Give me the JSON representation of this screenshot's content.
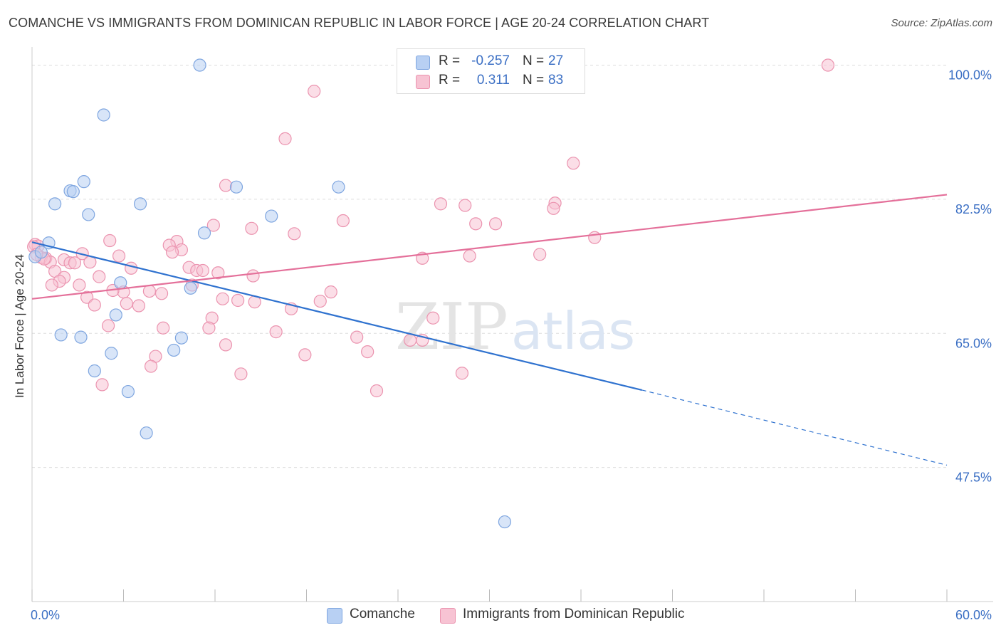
{
  "title": "COMANCHE VS IMMIGRANTS FROM DOMINICAN REPUBLIC IN LABOR FORCE | AGE 20-24 CORRELATION CHART",
  "source": "Source: ZipAtlas.com",
  "watermark": {
    "zip": "ZIP",
    "atlas": "atlas"
  },
  "legend": {
    "comanche": {
      "r_label": "R =",
      "r_value": "-0.257",
      "n_label": "N =",
      "n_value": "27"
    },
    "dominican": {
      "r_label": "R =",
      "r_value": "0.311",
      "n_label": "N =",
      "n_value": "83"
    }
  },
  "colors": {
    "comanche_fill": "#b8d0f3",
    "comanche_stroke": "#7fa6e0",
    "comanche_line": "#2f72cf",
    "dominican_fill": "#f7c3d3",
    "dominican_stroke": "#eb93af",
    "dominican_line": "#e4709a",
    "tick_label": "#3b6fc4",
    "grid": "#dddddd"
  },
  "chart_data": {
    "type": "scatter",
    "title": "COMANCHE VS IMMIGRANTS FROM DOMINICAN REPUBLIC IN LABOR FORCE | AGE 20-24 CORRELATION CHART",
    "xlabel": "",
    "ylabel": "In Labor Force | Age 20-24",
    "xlim": [
      0,
      60
    ],
    "ylim": [
      30,
      102
    ],
    "x_tick_labels": [
      "0.0%",
      "60.0%"
    ],
    "y_ticks": [
      47.5,
      65.0,
      82.5,
      100.0
    ],
    "y_tick_labels": [
      "47.5%",
      "65.0%",
      "82.5%",
      "100.0%"
    ],
    "grid": true,
    "legend_position": "top-center",
    "series": [
      {
        "name": "Comanche",
        "points": [
          [
            11.0,
            100.0
          ],
          [
            4.7,
            93.5
          ],
          [
            3.4,
            84.8
          ],
          [
            2.5,
            83.6
          ],
          [
            2.7,
            83.5
          ],
          [
            13.4,
            84.1
          ],
          [
            20.1,
            84.1
          ],
          [
            1.5,
            81.9
          ],
          [
            7.1,
            81.9
          ],
          [
            3.7,
            80.5
          ],
          [
            15.7,
            80.3
          ],
          [
            11.3,
            78.1
          ],
          [
            1.1,
            76.8
          ],
          [
            0.2,
            75.0
          ],
          [
            0.6,
            75.6
          ],
          [
            5.8,
            71.6
          ],
          [
            10.4,
            70.9
          ],
          [
            5.5,
            67.4
          ],
          [
            1.9,
            64.8
          ],
          [
            3.2,
            64.5
          ],
          [
            9.8,
            64.4
          ],
          [
            5.2,
            62.4
          ],
          [
            9.3,
            62.8
          ],
          [
            4.1,
            60.1
          ],
          [
            6.3,
            57.4
          ],
          [
            7.5,
            52.0
          ],
          [
            31.0,
            40.4
          ]
        ],
        "trend": {
          "x": [
            0,
            40
          ],
          "y": [
            76.9,
            57.6
          ],
          "dashed_extension": {
            "x": [
              40,
              60
            ],
            "y": [
              57.6,
              47.8
            ]
          }
        }
      },
      {
        "name": "Immigrants from Dominican Republic",
        "points": [
          [
            52.2,
            100.0
          ],
          [
            18.5,
            96.6
          ],
          [
            16.6,
            90.4
          ],
          [
            35.5,
            87.2
          ],
          [
            12.7,
            84.3
          ],
          [
            26.8,
            81.9
          ],
          [
            28.4,
            81.7
          ],
          [
            34.3,
            82.0
          ],
          [
            34.2,
            81.3
          ],
          [
            20.4,
            79.7
          ],
          [
            29.1,
            79.3
          ],
          [
            30.4,
            79.3
          ],
          [
            11.9,
            79.1
          ],
          [
            14.4,
            78.7
          ],
          [
            17.2,
            78.0
          ],
          [
            36.9,
            77.5
          ],
          [
            5.1,
            77.1
          ],
          [
            9.5,
            77.0
          ],
          [
            0.2,
            76.6
          ],
          [
            0.4,
            76.4
          ],
          [
            9.0,
            76.5
          ],
          [
            9.8,
            75.9
          ],
          [
            9.2,
            75.6
          ],
          [
            3.3,
            75.4
          ],
          [
            33.3,
            75.3
          ],
          [
            28.7,
            75.1
          ],
          [
            25.6,
            74.8
          ],
          [
            5.7,
            75.1
          ],
          [
            2.1,
            74.6
          ],
          [
            0.9,
            74.8
          ],
          [
            0.6,
            74.9
          ],
          [
            1.2,
            74.3
          ],
          [
            2.5,
            74.2
          ],
          [
            2.8,
            74.2
          ],
          [
            3.8,
            74.3
          ],
          [
            6.5,
            73.5
          ],
          [
            10.3,
            73.6
          ],
          [
            10.8,
            73.2
          ],
          [
            11.2,
            73.2
          ],
          [
            12.2,
            72.9
          ],
          [
            1.5,
            73.1
          ],
          [
            4.4,
            72.4
          ],
          [
            2.1,
            72.3
          ],
          [
            1.8,
            71.8
          ],
          [
            14.5,
            72.5
          ],
          [
            10.5,
            71.3
          ],
          [
            3.1,
            71.3
          ],
          [
            1.3,
            71.3
          ],
          [
            6.0,
            70.4
          ],
          [
            5.3,
            70.6
          ],
          [
            7.7,
            70.5
          ],
          [
            8.5,
            70.2
          ],
          [
            19.6,
            70.4
          ],
          [
            3.6,
            69.7
          ],
          [
            12.5,
            69.5
          ],
          [
            13.5,
            69.3
          ],
          [
            18.9,
            69.2
          ],
          [
            14.6,
            69.1
          ],
          [
            6.2,
            68.9
          ],
          [
            4.1,
            68.7
          ],
          [
            7.0,
            68.6
          ],
          [
            17.0,
            68.2
          ],
          [
            11.8,
            67.0
          ],
          [
            26.3,
            67.0
          ],
          [
            5.0,
            66.0
          ],
          [
            8.6,
            65.7
          ],
          [
            11.6,
            65.7
          ],
          [
            16.0,
            65.2
          ],
          [
            21.3,
            64.5
          ],
          [
            24.8,
            64.1
          ],
          [
            25.6,
            64.1
          ],
          [
            12.7,
            63.5
          ],
          [
            22.0,
            62.6
          ],
          [
            17.9,
            62.2
          ],
          [
            8.1,
            62.0
          ],
          [
            7.8,
            60.7
          ],
          [
            28.2,
            59.8
          ],
          [
            13.7,
            59.7
          ],
          [
            4.6,
            58.3
          ],
          [
            22.6,
            57.5
          ],
          [
            0.1,
            76.3
          ],
          [
            0.8,
            74.7
          ],
          [
            0.3,
            75.3
          ]
        ],
        "trend": {
          "x": [
            0,
            60
          ],
          "y": [
            69.5,
            83.1
          ]
        }
      }
    ]
  }
}
